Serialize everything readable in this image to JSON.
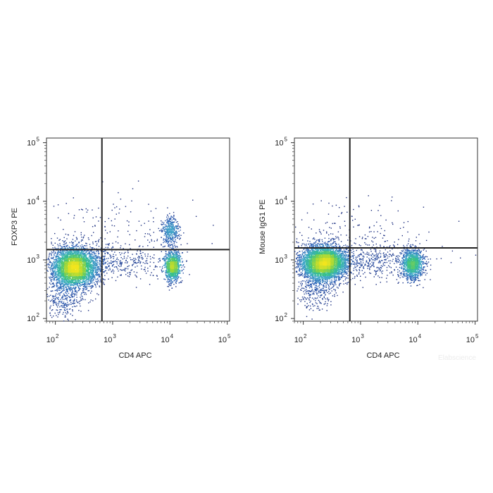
{
  "chart_data": [
    {
      "type": "scatter",
      "panel": "left",
      "xlabel": "CD4 APC",
      "ylabel": "FOXP3 PE",
      "x_scale": "log",
      "y_scale": "log",
      "xlim": [
        70,
        110000
      ],
      "ylim": [
        90,
        120000
      ],
      "x_ticks": [
        {
          "base": "10",
          "exp": "2",
          "value": 100
        },
        {
          "base": "10",
          "exp": "3",
          "value": 1000
        },
        {
          "base": "10",
          "exp": "4",
          "value": 10000
        },
        {
          "base": "10",
          "exp": "5",
          "value": 100000
        }
      ],
      "y_ticks": [
        {
          "base": "10",
          "exp": "2",
          "value": 100
        },
        {
          "base": "10",
          "exp": "3",
          "value": 1000
        },
        {
          "base": "10",
          "exp": "4",
          "value": 10000
        },
        {
          "base": "10",
          "exp": "5",
          "value": 100000
        }
      ],
      "quadrant_gate": {
        "x": 650,
        "y": 1500
      },
      "populations": [
        {
          "x": 210,
          "y": 750,
          "x_spread_log": 0.2,
          "y_spread_log": 0.17,
          "weight": 0.62
        },
        {
          "x": 11000,
          "y": 800,
          "x_spread_log": 0.07,
          "y_spread_log": 0.13,
          "weight": 0.18
        },
        {
          "x": 10000,
          "y": 3200,
          "x_spread_log": 0.07,
          "y_spread_log": 0.12,
          "weight": 0.06
        },
        {
          "x": 1200,
          "y": 900,
          "x_spread_log": 0.45,
          "y_spread_log": 0.15,
          "weight": 0.06
        },
        {
          "x": 140,
          "y": 220,
          "x_spread_log": 0.2,
          "y_spread_log": 0.18,
          "weight": 0.05
        },
        {
          "x": 900,
          "y": 3000,
          "x_spread_log": 0.7,
          "y_spread_log": 0.35,
          "weight": 0.03
        }
      ],
      "colormap": [
        "#1b2a7a",
        "#2f62b8",
        "#3fa9c9",
        "#35c08a",
        "#9ad63c",
        "#f2e51e"
      ]
    },
    {
      "type": "scatter",
      "panel": "right",
      "xlabel": "CD4 APC",
      "ylabel": "Mouse IgG1 PE",
      "x_scale": "log",
      "y_scale": "log",
      "xlim": [
        70,
        110000
      ],
      "ylim": [
        90,
        120000
      ],
      "x_ticks": [
        {
          "base": "10",
          "exp": "2",
          "value": 100
        },
        {
          "base": "10",
          "exp": "3",
          "value": 1000
        },
        {
          "base": "10",
          "exp": "4",
          "value": 10000
        },
        {
          "base": "10",
          "exp": "5",
          "value": 100000
        }
      ],
      "y_ticks": [
        {
          "base": "10",
          "exp": "2",
          "value": 100
        },
        {
          "base": "10",
          "exp": "3",
          "value": 1000
        },
        {
          "base": "10",
          "exp": "4",
          "value": 10000
        },
        {
          "base": "10",
          "exp": "5",
          "value": 100000
        }
      ],
      "quadrant_gate": {
        "x": 650,
        "y": 1600
      },
      "populations": [
        {
          "x": 220,
          "y": 900,
          "x_spread_log": 0.2,
          "y_spread_log": 0.15,
          "weight": 0.66
        },
        {
          "x": 8000,
          "y": 850,
          "x_spread_log": 0.09,
          "y_spread_log": 0.13,
          "weight": 0.2
        },
        {
          "x": 1500,
          "y": 950,
          "x_spread_log": 0.45,
          "y_spread_log": 0.14,
          "weight": 0.07
        },
        {
          "x": 160,
          "y": 300,
          "x_spread_log": 0.18,
          "y_spread_log": 0.16,
          "weight": 0.04
        },
        {
          "x": 700,
          "y": 2500,
          "x_spread_log": 0.6,
          "y_spread_log": 0.3,
          "weight": 0.03
        }
      ],
      "colormap": [
        "#1b2a7a",
        "#2f62b8",
        "#3fa9c9",
        "#35c08a",
        "#9ad63c",
        "#f2e51e"
      ]
    }
  ],
  "watermark": "Elabscience"
}
